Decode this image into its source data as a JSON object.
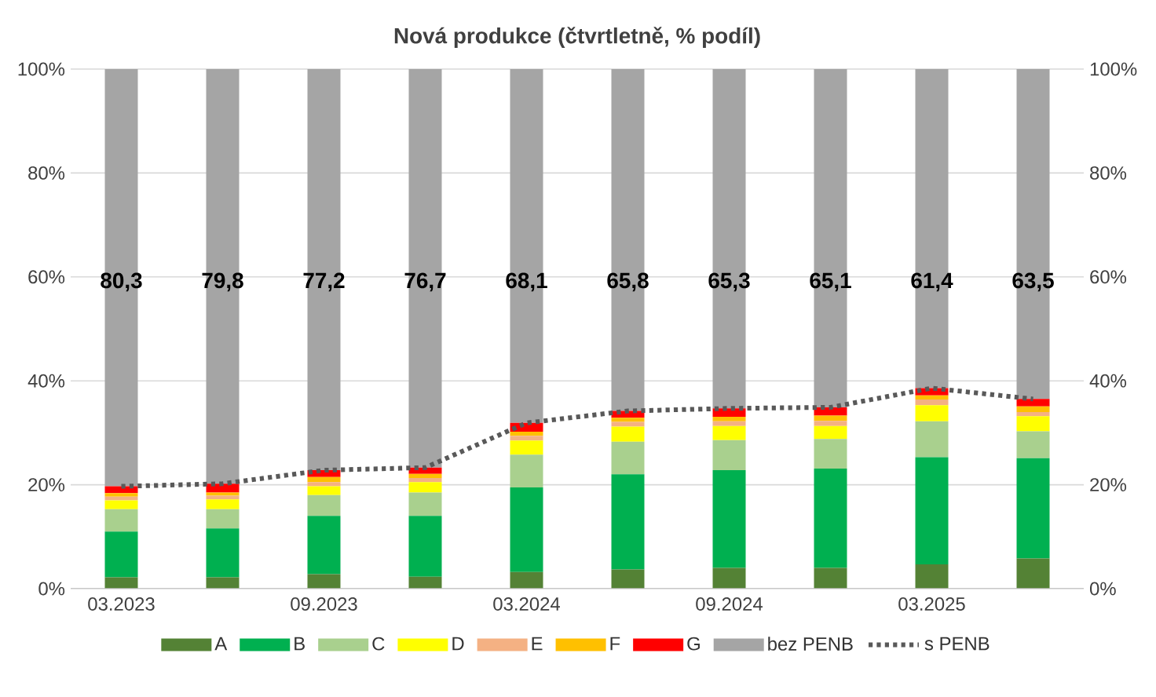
{
  "chart_data": {
    "type": "bar",
    "title": "Nová produkce (čtvrtletně, % podíl)",
    "stacked": true,
    "grid": "y",
    "legend": "bottom",
    "categories": [
      "03.2023",
      null,
      "09.2023",
      null,
      "03.2024",
      null,
      "09.2024",
      null,
      "03.2025",
      null
    ],
    "series": [
      {
        "name": "A",
        "color": "#548235",
        "values": [
          2.2,
          2.2,
          2.8,
          2.3,
          3.2,
          3.7,
          4.0,
          4.0,
          4.7,
          5.8
        ]
      },
      {
        "name": "B",
        "color": "#00b050",
        "values": [
          8.8,
          9.4,
          11.2,
          11.7,
          16.3,
          18.3,
          18.8,
          19.1,
          20.6,
          19.3
        ]
      },
      {
        "name": "C",
        "color": "#a9d08e",
        "values": [
          4.3,
          3.7,
          4.0,
          4.5,
          6.3,
          6.3,
          5.8,
          5.7,
          6.9,
          5.2
        ]
      },
      {
        "name": "D",
        "color": "#ffff00",
        "values": [
          1.7,
          1.9,
          1.7,
          2.0,
          2.7,
          2.9,
          2.7,
          2.5,
          3.1,
          2.9
        ]
      },
      {
        "name": "E",
        "color": "#f4b183",
        "values": [
          0.7,
          0.7,
          0.8,
          0.8,
          0.9,
          0.9,
          0.9,
          1.0,
          1.1,
          0.8
        ]
      },
      {
        "name": "F",
        "color": "#ffc000",
        "values": [
          0.7,
          0.6,
          1.0,
          0.8,
          0.8,
          0.8,
          0.9,
          1.0,
          0.8,
          1.1
        ]
      },
      {
        "name": "G",
        "color": "#ff0000",
        "values": [
          1.3,
          1.7,
          1.3,
          1.2,
          1.7,
          1.3,
          1.6,
          1.6,
          1.4,
          1.4
        ]
      },
      {
        "name": "bez PENB",
        "color": "#a5a5a5",
        "values": [
          80.3,
          79.8,
          77.2,
          76.7,
          68.1,
          65.8,
          65.3,
          65.1,
          61.4,
          63.5
        ],
        "value_labels": [
          "80,3",
          "79,8",
          "77,2",
          "76,7",
          "68,1",
          "65,8",
          "65,3",
          "65,1",
          "61,4",
          "63,5"
        ]
      },
      {
        "name": "s PENB",
        "type": "line",
        "line_style": "dotted",
        "color": "#595959",
        "values": [
          19.7,
          20.2,
          22.8,
          23.3,
          31.9,
          34.2,
          34.7,
          34.9,
          38.6,
          36.5
        ]
      }
    ],
    "ylim": [
      0,
      100
    ],
    "yticks": [
      {
        "value": 0,
        "label": "0%"
      },
      {
        "value": 20,
        "label": "20%"
      },
      {
        "value": 40,
        "label": "40%"
      },
      {
        "value": 60,
        "label": "60%"
      },
      {
        "value": 80,
        "label": "80%"
      },
      {
        "value": 100,
        "label": "100%"
      }
    ],
    "y2lim": [
      0,
      100
    ],
    "y2ticks": [
      {
        "value": 0,
        "label": "0%"
      },
      {
        "value": 20,
        "label": "20%"
      },
      {
        "value": 40,
        "label": "40%"
      },
      {
        "value": 60,
        "label": "60%"
      },
      {
        "value": 80,
        "label": "80%"
      },
      {
        "value": 100,
        "label": "100%"
      }
    ]
  }
}
